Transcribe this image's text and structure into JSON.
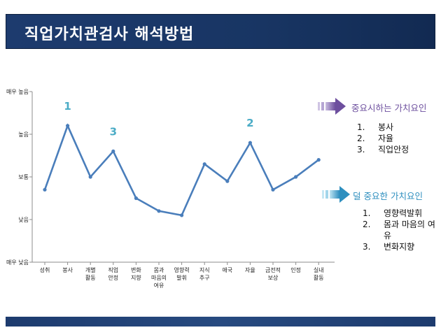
{
  "header": {
    "title": "직업가치관검사 해석방법"
  },
  "chart_data": {
    "type": "line",
    "yticks": [
      "매우 높음",
      "높음",
      "보통",
      "낮음",
      "매우 낮음"
    ],
    "ylim": [
      0,
      4
    ],
    "categories": [
      [
        "성취"
      ],
      [
        "봉사"
      ],
      [
        "개별",
        "활동"
      ],
      [
        "직업",
        "안정"
      ],
      [
        "변화",
        "지향"
      ],
      [
        "몸과",
        "마음의",
        "여유"
      ],
      [
        "영향력",
        "발휘"
      ],
      [
        "지식",
        "추구"
      ],
      [
        "애국"
      ],
      [
        "자율"
      ],
      [
        "금전적",
        "보상"
      ],
      [
        "인정"
      ],
      [
        "실내",
        "활동"
      ]
    ],
    "values": [
      1.7,
      3.2,
      2.0,
      2.6,
      1.5,
      1.2,
      1.1,
      2.3,
      1.9,
      2.8,
      1.7,
      2.0,
      2.4
    ],
    "annotations": [
      {
        "text": "1",
        "index": 1
      },
      {
        "text": "3",
        "index": 3
      },
      {
        "text": "2",
        "index": 9
      }
    ],
    "line_color": "#4a7ebb",
    "annotation_color": "#4bacc6"
  },
  "important": {
    "heading": "중요시하는 가치요인",
    "color": "#7b5fa6",
    "items": [
      {
        "num": "1.",
        "text": "봉사"
      },
      {
        "num": "2.",
        "text": "자율"
      },
      {
        "num": "3.",
        "text": "직업안정"
      }
    ]
  },
  "less_important": {
    "heading": "덜 중요한 가치요인",
    "color": "#2e8fbf",
    "items": [
      {
        "num": "1.",
        "text": "영향력발휘"
      },
      {
        "num": "2.",
        "text": "몸과 마음의 여유"
      },
      {
        "num": "3.",
        "text": "변화지향"
      }
    ]
  }
}
